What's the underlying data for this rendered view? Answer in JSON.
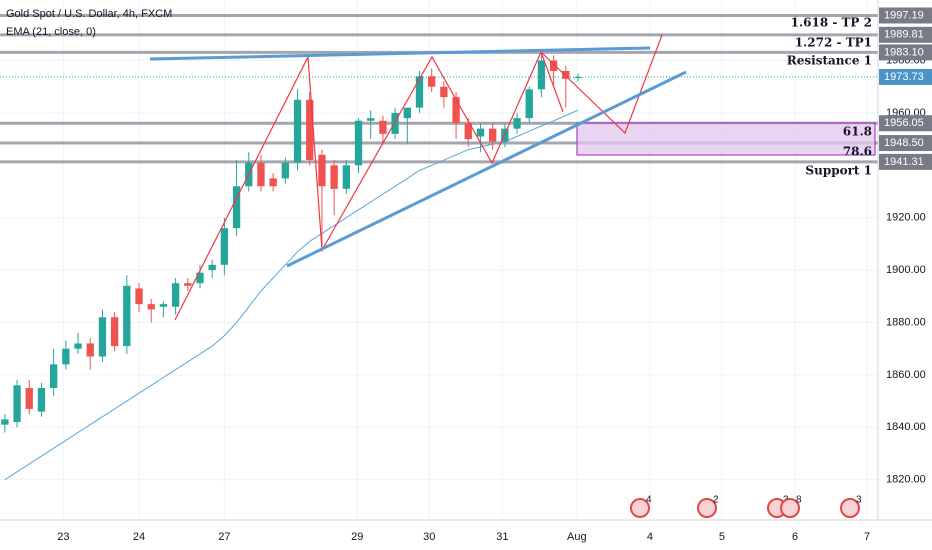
{
  "chart_data": {
    "type": "candlestick",
    "title": "Gold Spot / U.S. Dollar, 4h, FXCM",
    "subtitle": "EMA (21, close, 0)",
    "open": [
      1841,
      1842,
      1855,
      1846,
      1855,
      1864,
      1870,
      1872,
      1867,
      1882,
      1871,
      1893,
      1887,
      1886,
      1886,
      1895,
      1895,
      1900,
      1902,
      1916,
      1932,
      1941,
      1935,
      1935,
      1941,
      1965,
      1944,
      1940,
      1931,
      1940,
      1957,
      1957,
      1952,
      1958,
      1962,
      1974,
      1970,
      1966,
      1956,
      1951,
      1954,
      1949,
      1954,
      1958,
      1969,
      1980,
      1976,
      1973.5
    ],
    "high": [
      1845,
      1858,
      1858,
      1857,
      1870,
      1873,
      1876,
      1874,
      1885,
      1884,
      1898,
      1895,
      1889,
      1888,
      1897,
      1897,
      1902,
      1904,
      1920,
      1942,
      1945,
      1944,
      1937,
      1943,
      1969,
      1968,
      1946,
      1942,
      1942,
      1958,
      1961,
      1959,
      1962,
      1962,
      1976,
      1977,
      1972,
      1968,
      1958,
      1956,
      1956,
      1956,
      1960,
      1970,
      1982,
      1982,
      1978,
      1975
    ],
    "low": [
      1838,
      1840,
      1845,
      1844,
      1852,
      1862,
      1868,
      1862,
      1865,
      1869,
      1868,
      1884,
      1880,
      1882,
      1883,
      1892,
      1893,
      1897,
      1898,
      1913,
      1930,
      1930,
      1930,
      1933,
      1938,
      1940,
      1907,
      1921,
      1929,
      1937,
      1950,
      1948,
      1950,
      1948,
      1960,
      1968,
      1962,
      1950,
      1947,
      1945,
      1946,
      1947,
      1952,
      1956,
      1966,
      1970,
      1962,
      1972
    ],
    "close": [
      1843,
      1856,
      1847,
      1855,
      1864,
      1870,
      1872,
      1867,
      1882,
      1871,
      1894,
      1887,
      1885,
      1887,
      1895,
      1894,
      1899,
      1902,
      1916,
      1932,
      1941,
      1932,
      1932,
      1941,
      1965,
      1942,
      1932,
      1931,
      1940,
      1957,
      1958,
      1952,
      1960,
      1962,
      1974,
      1970,
      1966,
      1956,
      1950,
      1954,
      1949,
      1954,
      1958,
      1969,
      1980,
      1976,
      1973,
      1973.7
    ],
    "ema": {
      "name": "EMA (21, close, 0)",
      "color": "#5aa7d6",
      "values": [
        1820,
        1823,
        1826,
        1829,
        1832,
        1835,
        1838,
        1841,
        1844,
        1847,
        1850,
        1853,
        1856,
        1859,
        1862,
        1865,
        1868,
        1871,
        1875,
        1880,
        1886,
        1892,
        1897,
        1902,
        1907,
        1911,
        1914,
        1917,
        1920,
        1923,
        1926,
        1929,
        1932,
        1935,
        1938,
        1940,
        1942,
        1944,
        1946,
        1947,
        1948,
        1949,
        1951,
        1953,
        1955,
        1957,
        1959,
        1961
      ]
    },
    "up_color": "#26a69a",
    "down_color": "#ef5350",
    "xlim": [
      -0.4,
      71.6
    ],
    "xticks": [
      {
        "value": 4.8,
        "label": "23"
      },
      {
        "value": 11.0,
        "label": "24"
      },
      {
        "value": 18.0,
        "label": "27"
      },
      {
        "value": 28.9,
        "label": "29"
      },
      {
        "value": 34.8,
        "label": "30"
      },
      {
        "value": 40.8,
        "label": "31"
      },
      {
        "value": 46.9,
        "label": "Aug"
      },
      {
        "value": 52.9,
        "label": "4"
      },
      {
        "value": 58.8,
        "label": "5"
      },
      {
        "value": 64.8,
        "label": "6"
      },
      {
        "value": 70.7,
        "label": "7"
      }
    ],
    "ylim": [
      1804.6,
      2003.1
    ],
    "yticks": [
      {
        "value": 1820,
        "label": "1820.00"
      },
      {
        "value": 1840,
        "label": "1840.00"
      },
      {
        "value": 1860,
        "label": "1860.00"
      },
      {
        "value": 1880,
        "label": "1880.00"
      },
      {
        "value": 1900,
        "label": "1900.00"
      },
      {
        "value": 1920,
        "label": "1920.00"
      },
      {
        "value": 1960,
        "label": "1960.00"
      },
      {
        "value": 1980,
        "label": "1980.00"
      }
    ],
    "price_levels": [
      {
        "value": 1997.19,
        "label": "1997.19"
      },
      {
        "value": 1989.81,
        "label": "1989.81"
      },
      {
        "value": 1983.1,
        "label": "1983.10"
      },
      {
        "value": 1956.05,
        "label": "1956.05"
      },
      {
        "value": 1948.5,
        "label": "1948.50"
      },
      {
        "value": 1941.31,
        "label": "1941.31"
      }
    ],
    "last_price": {
      "value": 1973.73,
      "label": "1973.73"
    },
    "annotations": [
      "1.618 - TP 2",
      "1.272 - TP1",
      "Resistance 1",
      "61.8",
      "78.6",
      "Support 1"
    ],
    "events": [
      "4",
      "2",
      "3",
      "8",
      "3"
    ]
  }
}
